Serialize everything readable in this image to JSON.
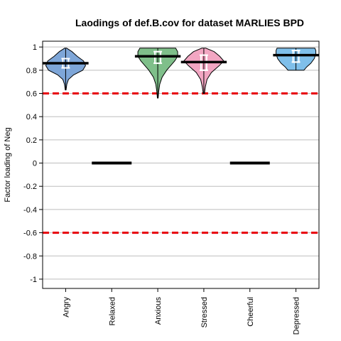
{
  "chart_data": {
    "type": "violin",
    "title": "Laodings of def.B.cov for dataset MARLIES BPD",
    "xlabel": "",
    "ylabel": "Factor loading of Neg",
    "ylim": [
      -1.08,
      1.05
    ],
    "yticks": [
      1,
      0.8,
      0.6,
      0.4,
      0.2,
      0,
      -0.2,
      -0.4,
      -0.6,
      -0.8,
      -1
    ],
    "ytick_labels": [
      "1",
      "0.8",
      "0.6",
      "0.4",
      "0.2",
      "0",
      "-0.2",
      "-0.4",
      "-0.6",
      "-0.8",
      "-1"
    ],
    "grid": true,
    "categories": [
      "Angry",
      "Relaxed",
      "Anxious",
      "Stressed",
      "Cheerful",
      "Depressed"
    ],
    "reference_lines": [
      0.6,
      -0.6
    ],
    "reference_color": "#e8000b",
    "items": [
      {
        "name": "Angry",
        "type": "violin",
        "color": "#7ea6d8",
        "median": 0.86,
        "q1": 0.82,
        "q3": 0.9,
        "min": 0.63,
        "max": 0.99,
        "profile": [
          [
            0.63,
            0.02
          ],
          [
            0.68,
            0.06
          ],
          [
            0.72,
            0.14
          ],
          [
            0.76,
            0.4
          ],
          [
            0.8,
            0.86
          ],
          [
            0.84,
            1.0
          ],
          [
            0.88,
            0.9
          ],
          [
            0.92,
            0.58
          ],
          [
            0.96,
            0.32
          ],
          [
            0.99,
            0.05
          ]
        ]
      },
      {
        "name": "Relaxed",
        "type": "point",
        "value": 0
      },
      {
        "name": "Anxious",
        "type": "violin",
        "color": "#7fbf8a",
        "median": 0.92,
        "q1": 0.86,
        "q3": 0.96,
        "min": 0.56,
        "max": 0.99,
        "profile": [
          [
            0.56,
            0.02
          ],
          [
            0.62,
            0.05
          ],
          [
            0.68,
            0.1
          ],
          [
            0.74,
            0.22
          ],
          [
            0.8,
            0.45
          ],
          [
            0.85,
            0.7
          ],
          [
            0.88,
            0.85
          ],
          [
            0.92,
            1.0
          ],
          [
            0.96,
            1.0
          ],
          [
            0.99,
            0.9
          ]
        ]
      },
      {
        "name": "Stressed",
        "type": "violin",
        "color": "#f2a6c2",
        "median": 0.87,
        "q1": 0.8,
        "q3": 0.93,
        "min": 0.6,
        "max": 0.99,
        "profile": [
          [
            0.6,
            0.03
          ],
          [
            0.66,
            0.08
          ],
          [
            0.72,
            0.16
          ],
          [
            0.78,
            0.38
          ],
          [
            0.84,
            0.78
          ],
          [
            0.88,
            1.0
          ],
          [
            0.92,
            0.8
          ],
          [
            0.96,
            0.52
          ],
          [
            0.99,
            0.1
          ]
        ]
      },
      {
        "name": "Cheerful",
        "type": "point",
        "value": 0
      },
      {
        "name": "Depressed",
        "type": "violin",
        "color": "#7fbfea",
        "median": 0.93,
        "q1": 0.87,
        "q3": 0.97,
        "min": 0.8,
        "max": 0.99,
        "profile": [
          [
            0.8,
            0.4
          ],
          [
            0.83,
            0.55
          ],
          [
            0.86,
            0.75
          ],
          [
            0.9,
            0.92
          ],
          [
            0.94,
            1.0
          ],
          [
            0.97,
            1.0
          ],
          [
            0.99,
            0.95
          ]
        ]
      }
    ]
  }
}
